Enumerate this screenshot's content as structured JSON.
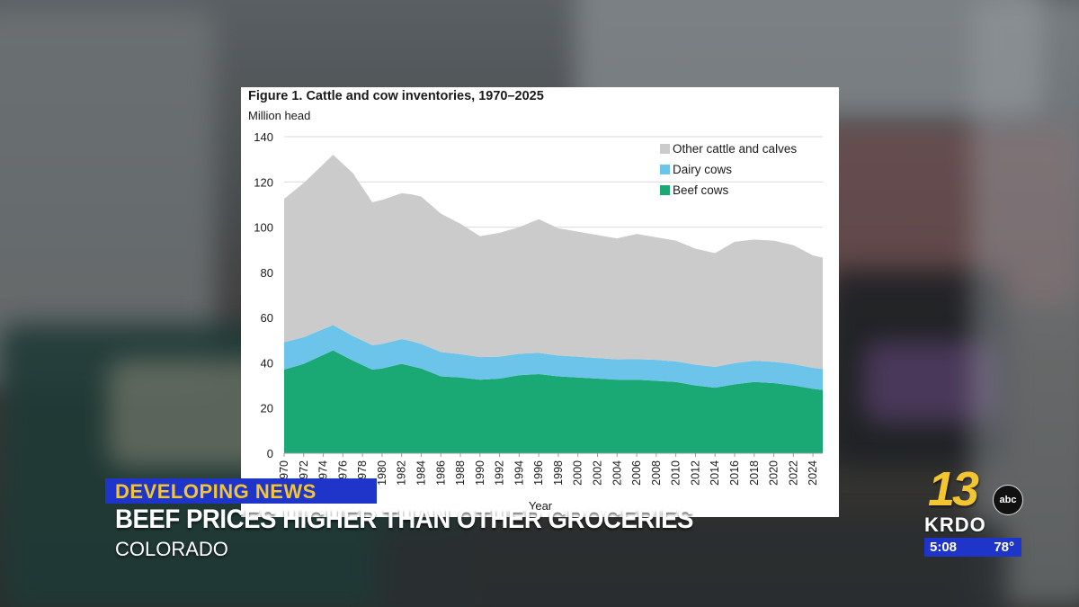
{
  "chart_data": {
    "type": "area",
    "stacked": true,
    "title": "Figure 1. Cattle and cow inventories, 1970–2025",
    "ylabel": "Million head",
    "xlabel": "Year",
    "ylim": [
      0,
      140
    ],
    "yticks": [
      0,
      20,
      40,
      60,
      80,
      100,
      120,
      140
    ],
    "xlim": [
      1970,
      2025
    ],
    "xticks": [
      "1970",
      "1972",
      "1974",
      "1976",
      "1978",
      "1980",
      "1982",
      "1984",
      "1986",
      "1988",
      "1990",
      "1992",
      "1994",
      "1996",
      "1998",
      "2000",
      "2002",
      "2004",
      "2006",
      "2008",
      "2010",
      "2012",
      "2014",
      "2016",
      "2018",
      "2020",
      "2022",
      "2024"
    ],
    "grid": true,
    "legend_position": "top-right",
    "x": [
      1970,
      1972,
      1975,
      1977,
      1979,
      1980,
      1982,
      1983,
      1984,
      1986,
      1988,
      1990,
      1992,
      1994,
      1996,
      1998,
      2000,
      2002,
      2004,
      2006,
      2008,
      2010,
      2012,
      2014,
      2016,
      2018,
      2020,
      2022,
      2024,
      2025
    ],
    "series": [
      {
        "name": "Beef cows",
        "color": "#1aa874",
        "values": [
          37,
          39.5,
          45.5,
          41,
          37,
          37.5,
          39.5,
          38.5,
          37.5,
          34,
          33.5,
          32.5,
          33,
          34.5,
          35,
          34,
          33.5,
          33,
          32.5,
          32.5,
          32,
          31.5,
          30,
          29,
          30.5,
          31.5,
          31,
          30,
          28.5,
          28
        ]
      },
      {
        "name": "Dairy cows",
        "color": "#6cc4ea",
        "values": [
          12.1,
          11.8,
          11.2,
          10.9,
          10.8,
          10.8,
          11.0,
          11.1,
          10.8,
          10.8,
          10.3,
          10.0,
          9.7,
          9.5,
          9.4,
          9.2,
          9.2,
          9.1,
          9.0,
          9.1,
          9.3,
          9.1,
          9.2,
          9.2,
          9.3,
          9.4,
          9.4,
          9.4,
          9.3,
          9.3
        ]
      },
      {
        "name": "Other cattle and calves",
        "color": "#cbcbcb",
        "values": [
          63.4,
          68.2,
          75.3,
          72.1,
          63.2,
          63.7,
          64.5,
          64.9,
          65.2,
          61.2,
          57.7,
          53.5,
          54.8,
          56,
          59.1,
          56.3,
          55.3,
          54.4,
          53.5,
          55.4,
          54.2,
          53.4,
          51.3,
          50.3,
          53.7,
          53.6,
          53.6,
          52.6,
          49.7,
          49.2
        ]
      }
    ]
  },
  "overlay": {
    "tag": "DEVELOPING NEWS",
    "headline": "BEEF PRICES HIGHER THAN OTHER GROCERIES",
    "location": "COLORADO"
  },
  "station": {
    "channel": "13",
    "network": "abc",
    "callsign": "KRDO",
    "time": "5:08",
    "temp": "78°"
  }
}
